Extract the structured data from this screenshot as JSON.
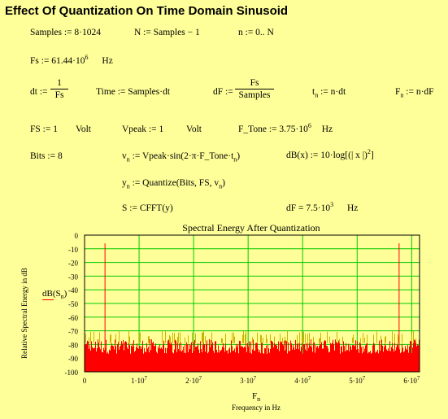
{
  "title": "Effect Of Quantization On Time Domain Sinusoid",
  "eq": {
    "samples": "Samples := 8·1024",
    "N": "N := Samples − 1",
    "n": "n := 0.. N",
    "fs_lhs": "Fs := 61.44·10",
    "fs_exp": "6",
    "fs_unit": "Hz",
    "dt_lhs": "dt :=",
    "dt_num": "1",
    "dt_den": "Fs",
    "time": "Time := Samples·dt",
    "dF_lhs": "dF :=",
    "dF_num": "Fs",
    "dF_den": "Samples",
    "tn_t": "t",
    "tn_n": "n",
    "tn_rhs": ":= n·dt",
    "Fn_F": "F",
    "Fn_n": "n",
    "Fn_rhs": ":= n·dF",
    "FS": "FS := 1",
    "FS_unit": "Volt",
    "vpeak": "Vpeak := 1",
    "vpeak_unit": "Volt",
    "ftone_lhs": "F_Tone := 3.75·10",
    "ftone_exp": "6",
    "ftone_unit": "Hz",
    "bits": "Bits := 8",
    "vn_v": "v",
    "vn_n": "n",
    "vn_rhs": ":= Vpeak·sin(2·π·F_Tone·t",
    "vn_n2": "n",
    "vn_close": ")",
    "dB_def": "dB(x) := 10·log[(| x |)",
    "dB_exp": "2",
    "dB_close": "]",
    "yn_y": "y",
    "yn_n": "n",
    "yn_rhs": ":= Quantize(Bits, FS, v",
    "yn_n2": "n",
    "yn_close": ")",
    "S": "S := CFFT(y)",
    "dF_result": "dF = 7.5·10",
    "dF_result_exp": "3",
    "dF_result_unit": "Hz"
  },
  "chart_data": {
    "type": "line",
    "title": "Spectral Energy After Quantization",
    "ylabel": "Relative Spectral Energy in dB",
    "xlabel_var": "F",
    "xlabel_sub": "n",
    "xlabel": "Frequency in Hz",
    "legend_label": "dB(S",
    "legend_sub": "n",
    "legend_close": ")",
    "ylim": [
      -100,
      0
    ],
    "xlim": [
      0,
      61440000
    ],
    "y_ticks": [
      "0",
      "-10",
      "-20",
      "-30",
      "-40",
      "-50",
      "-60",
      "-70",
      "-80",
      "-90",
      "-100"
    ],
    "x_ticks": [
      "0",
      "1·10",
      "2·10",
      "3·10",
      "4·10",
      "5·10",
      "6·10"
    ],
    "x_tick_exp": "7",
    "x_tick_values": [
      0,
      10000000,
      20000000,
      30000000,
      40000000,
      50000000,
      60000000
    ],
    "peaks": [
      {
        "x": 3750000,
        "y": -6
      },
      {
        "x": 57690000,
        "y": -6
      }
    ],
    "noise_floor_range": [
      -100,
      -76
    ],
    "noise_spur_max": -70,
    "grid": true,
    "colors": {
      "trace": "#ff0000",
      "spur": "#c8b400",
      "grid": "#00c800",
      "background": "#ffff99"
    }
  }
}
